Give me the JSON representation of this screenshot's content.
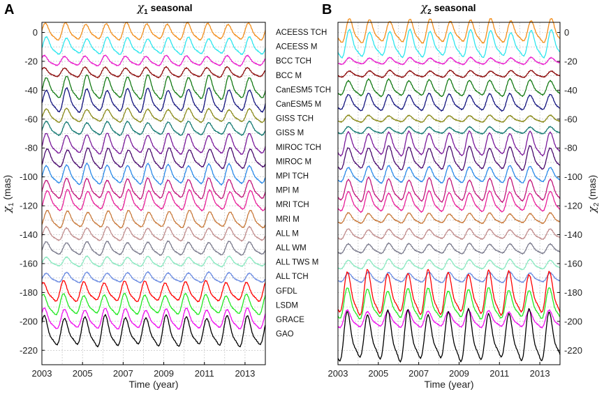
{
  "chart_data": [
    {
      "type": "line",
      "panel": "A",
      "title": "χ1 seasonal",
      "title_main": "χ",
      "title_sub": "1",
      "title_rest": " seasonal",
      "xlabel": "Time (year)",
      "ylabel": "χ1 (mas)",
      "ylabel_main": "χ",
      "ylabel_sub": "1",
      "ylabel_rest": " (mas)",
      "xlim": [
        2003,
        2014
      ],
      "ylim": [
        -230,
        7
      ],
      "x_ticks": [
        2003,
        2005,
        2007,
        2009,
        2011,
        2013
      ],
      "y_ticks": [
        0,
        -20,
        -40,
        -60,
        -80,
        -100,
        -120,
        -140,
        -160,
        -180,
        -200,
        -220
      ],
      "grid": true,
      "series": [
        {
          "name": "ACEESS TCH",
          "color": "#f28e1c",
          "offset": 0,
          "amplitude": 5,
          "peak_phase": 0.2
        },
        {
          "name": "ACEESS M",
          "color": "#2ee6ee",
          "offset": -10,
          "amplitude": 5,
          "peak_phase": 0.25
        },
        {
          "name": "BCC TCH",
          "color": "#e81ecc",
          "offset": -20,
          "amplitude": 3,
          "peak_phase": 0.15
        },
        {
          "name": "BCC M",
          "color": "#8c0a0a",
          "offset": -28,
          "amplitude": 3,
          "peak_phase": 0.15
        },
        {
          "name": "CanESM5 TCH",
          "color": "#157a15",
          "offset": -39,
          "amplitude": 7,
          "peak_phase": 0.25
        },
        {
          "name": "CanESM5 M",
          "color": "#14147f",
          "offset": -48,
          "amplitude": 7,
          "peak_phase": 0.25
        },
        {
          "name": "GISS TCH",
          "color": "#8a8a1a",
          "offset": -58,
          "amplitude": 4,
          "peak_phase": 0.25
        },
        {
          "name": "GISS M",
          "color": "#157a73",
          "offset": -67,
          "amplitude": 4,
          "peak_phase": 0.25
        },
        {
          "name": "MIROC TCH",
          "color": "#7a1a9a",
          "offset": -78,
          "amplitude": 6,
          "peak_phase": 0.25
        },
        {
          "name": "MIROC  M",
          "color": "#4a0a6e",
          "offset": -88,
          "amplitude": 6,
          "peak_phase": 0.3
        },
        {
          "name": "MPI TCH",
          "color": "#2a8ae8",
          "offset": -99,
          "amplitude": 6,
          "peak_phase": 0.25
        },
        {
          "name": "MPI M",
          "color": "#c0157a",
          "offset": -109,
          "amplitude": 6,
          "peak_phase": 0.25
        },
        {
          "name": "MRI TCH",
          "color": "#e8209a",
          "offset": -117,
          "amplitude": 6,
          "peak_phase": 0.3
        },
        {
          "name": "MRI M",
          "color": "#c87a3c",
          "offset": -130,
          "amplitude": 5,
          "peak_phase": 0.3
        },
        {
          "name": "ALL M",
          "color": "#c08c8c",
          "offset": -140,
          "amplitude": 4,
          "peak_phase": 0.25
        },
        {
          "name": "ALL WM",
          "color": "#7a7a8c",
          "offset": -150,
          "amplitude": 4,
          "peak_phase": 0.25
        },
        {
          "name": "ALL TWS M",
          "color": "#8ae8c0",
          "offset": -159,
          "amplitude": 3,
          "peak_phase": 0.25
        },
        {
          "name": "ALL TCH",
          "color": "#6a8ae0",
          "offset": -170,
          "amplitude": 3,
          "peak_phase": 0.25
        },
        {
          "name": "GFDL",
          "color": "#ff0000",
          "offset": -180,
          "amplitude": 6,
          "peak_phase": 0.1
        },
        {
          "name": "LSDM",
          "color": "#22e822",
          "offset": -189,
          "amplitude": 6,
          "peak_phase": 0.1
        },
        {
          "name": "GRACE",
          "color": "#ee10ee",
          "offset": -199,
          "amplitude": 6,
          "peak_phase": 0.15
        },
        {
          "name": "GAO",
          "color": "#000000",
          "offset": -208,
          "amplitude": 9,
          "peak_phase": 0.15
        }
      ]
    },
    {
      "type": "line",
      "panel": "B",
      "title": "χ2 seasonal",
      "title_main": "χ",
      "title_sub": "2",
      "title_rest": " seasonal",
      "xlabel": "Time (year)",
      "ylabel": "χ2 (mas)",
      "ylabel_main": "χ",
      "ylabel_sub": "2",
      "ylabel_rest": " (mas)",
      "xlim": [
        2003,
        2014
      ],
      "ylim": [
        -230,
        7
      ],
      "x_ticks": [
        2003,
        2005,
        2007,
        2009,
        2011,
        2013
      ],
      "y_ticks": [
        0,
        -20,
        -40,
        -60,
        -80,
        -100,
        -120,
        -140,
        -160,
        -180,
        -200,
        -220
      ],
      "grid": true,
      "series": [
        {
          "name": "ACEESS TCH",
          "color": "#f28e1c",
          "offset": 0,
          "amplitude": 7,
          "peak_phase": 0.6
        },
        {
          "name": "ACEESS M",
          "color": "#2ee6ee",
          "offset": -9,
          "amplitude": 8,
          "peak_phase": 0.6
        },
        {
          "name": "BCC TCH",
          "color": "#e81ecc",
          "offset": -20,
          "amplitude": 2,
          "peak_phase": 0.6
        },
        {
          "name": "BCC M",
          "color": "#8c0a0a",
          "offset": -29,
          "amplitude": 2,
          "peak_phase": 0.6
        },
        {
          "name": "CanESM5 TCH",
          "color": "#157a15",
          "offset": -39,
          "amplitude": 5,
          "peak_phase": 0.55
        },
        {
          "name": "CanESM5 M",
          "color": "#14147f",
          "offset": -49,
          "amplitude": 5,
          "peak_phase": 0.55
        },
        {
          "name": "GISS TCH",
          "color": "#8a8a1a",
          "offset": -60,
          "amplitude": 2,
          "peak_phase": 0.55
        },
        {
          "name": "GISS M",
          "color": "#157a73",
          "offset": -68,
          "amplitude": 2,
          "peak_phase": 0.55
        },
        {
          "name": "MIROC TCH",
          "color": "#7a1a9a",
          "offset": -78,
          "amplitude": 7,
          "peak_phase": 0.55
        },
        {
          "name": "MIROC  M",
          "color": "#4a0a6e",
          "offset": -88,
          "amplitude": 7,
          "peak_phase": 0.55
        },
        {
          "name": "MPI TCH",
          "color": "#2a8ae8",
          "offset": -99,
          "amplitude": 5,
          "peak_phase": 0.55
        },
        {
          "name": "MPI M",
          "color": "#c0157a",
          "offset": -110,
          "amplitude": 7,
          "peak_phase": 0.55
        },
        {
          "name": "MRI TCH",
          "color": "#e8209a",
          "offset": -118,
          "amplitude": 6,
          "peak_phase": 0.55
        },
        {
          "name": "MRI M",
          "color": "#c87a3c",
          "offset": -129,
          "amplitude": 3,
          "peak_phase": 0.55
        },
        {
          "name": "ALL M",
          "color": "#c08c8c",
          "offset": -140,
          "amplitude": 3,
          "peak_phase": 0.55
        },
        {
          "name": "ALL WM",
          "color": "#7a7a8c",
          "offset": -150,
          "amplitude": 3,
          "peak_phase": 0.55
        },
        {
          "name": "ALL TWS M",
          "color": "#8ae8c0",
          "offset": -161,
          "amplitude": 3,
          "peak_phase": 0.55
        },
        {
          "name": "ALL TCH",
          "color": "#6a8ae0",
          "offset": -170,
          "amplitude": 3,
          "peak_phase": 0.55
        },
        {
          "name": "GFDL",
          "color": "#ff0000",
          "offset": -182,
          "amplitude": 13,
          "peak_phase": 0.5
        },
        {
          "name": "LSDM",
          "color": "#22e822",
          "offset": -189,
          "amplitude": 9,
          "peak_phase": 0.5
        },
        {
          "name": "GRACE",
          "color": "#ee10ee",
          "offset": -199,
          "amplitude": 5,
          "peak_phase": 0.5
        },
        {
          "name": "GAO",
          "color": "#000000",
          "offset": -212,
          "amplitude": 15,
          "peak_phase": 0.5
        }
      ]
    }
  ]
}
